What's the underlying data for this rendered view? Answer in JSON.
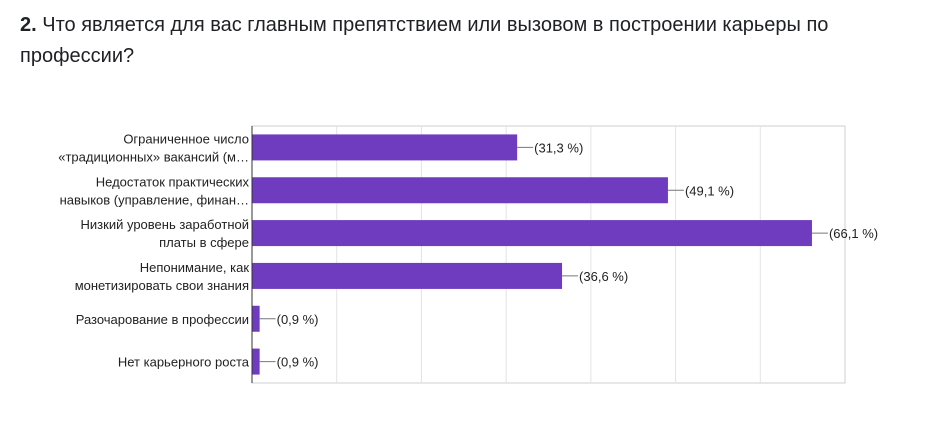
{
  "question": {
    "number": "2.",
    "text": "Что является для вас главным препятствием или вызовом в построении карьеры по профессии?"
  },
  "chart_data": {
    "type": "bar",
    "orientation": "horizontal",
    "categories": [
      [
        "Ограниченное число",
        "«традиционных» вакансий (м…"
      ],
      [
        "Недостаток практических",
        "навыков (управление, финан…"
      ],
      [
        "Низкий уровень заработной",
        "платы в сфере"
      ],
      [
        "Непонимание, как",
        "монетизировать свои знания"
      ],
      [
        "Разочарование в профессии"
      ],
      [
        "Нет карьерного роста"
      ]
    ],
    "values": [
      31.3,
      49.1,
      66.1,
      36.6,
      0.9,
      0.9
    ],
    "value_labels": [
      "(31,3 %)",
      "(49,1 %)",
      "(66,1 %)",
      "(36,6 %)",
      "(0,9 %)",
      "(0,9 %)"
    ],
    "xlim": [
      0,
      70
    ],
    "grid": true,
    "legend": "none",
    "bar_color": "#6f3bbf"
  }
}
